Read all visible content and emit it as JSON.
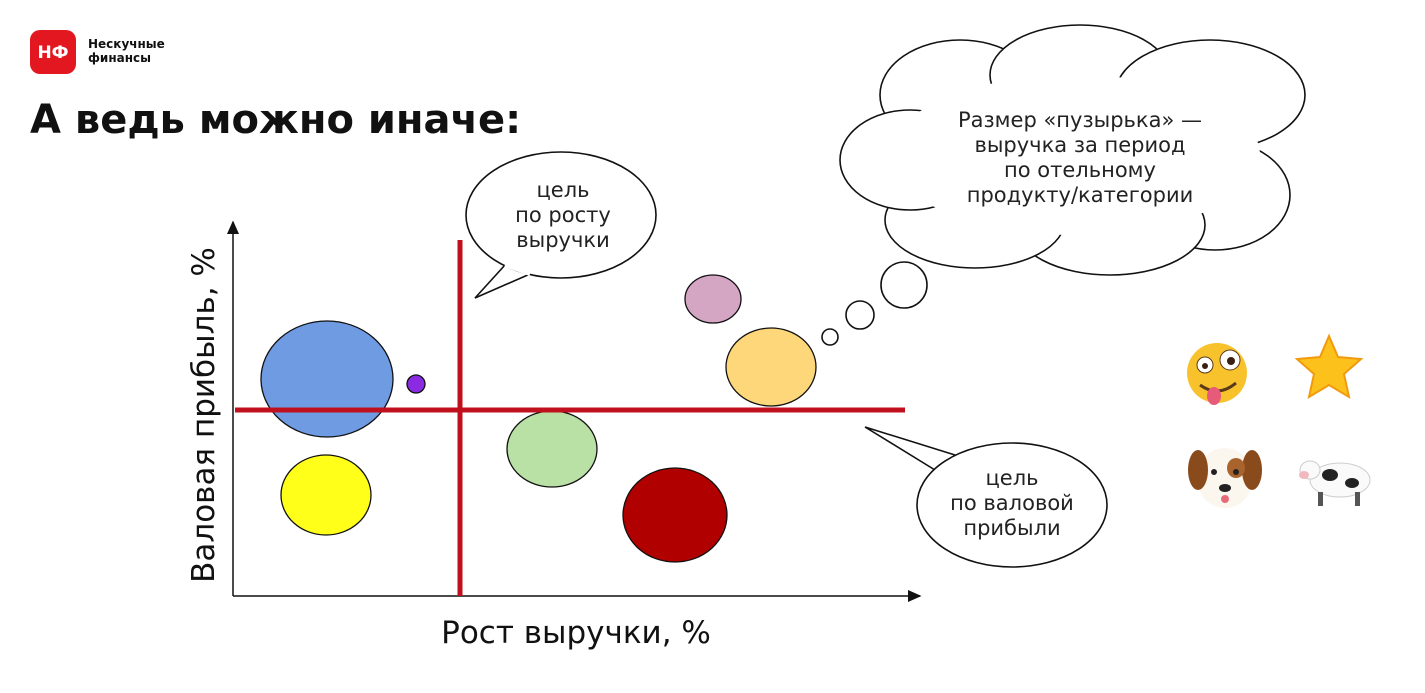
{
  "logo": {
    "mark": "НФ",
    "name": [
      "Нескучные",
      "финансы"
    ]
  },
  "title": "А ведь можно иначе:",
  "axes": {
    "y": "Валовая прибыль, %",
    "x": "Рост выручки, %"
  },
  "callouts": {
    "growth_goal": [
      "цель",
      "по росту",
      "выручки"
    ],
    "margin_goal": [
      "цель",
      "по валовой",
      "прибыли"
    ],
    "bubble_size": [
      "Размер «пузырька» —",
      "выручка за период",
      "по отельному",
      "продукту/категории"
    ]
  }
}
